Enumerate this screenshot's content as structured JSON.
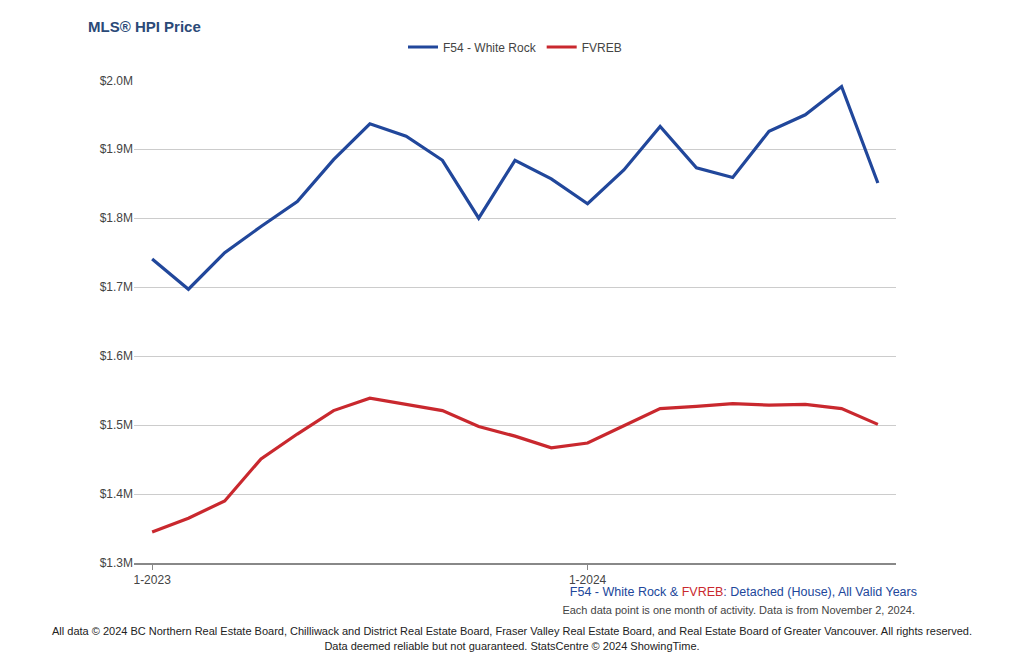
{
  "chart_data": {
    "type": "line",
    "title": "MLS® HPI Price",
    "categories": [
      "1-2023",
      null,
      null,
      null,
      null,
      null,
      null,
      null,
      null,
      null,
      null,
      null,
      "1-2024",
      null,
      null,
      null,
      null,
      null,
      null,
      null,
      null
    ],
    "series": [
      {
        "name": "F54 - White Rock",
        "color": "#21479b",
        "values": [
          1741000,
          1697000,
          1750000,
          1788000,
          1824000,
          1885000,
          1937000,
          1919000,
          1884000,
          1800000,
          1884000,
          1857000,
          1821000,
          1870000,
          1933000,
          1873000,
          1859000,
          1926000,
          1950000,
          1991000,
          1851000
        ]
      },
      {
        "name": "FVREB",
        "color": "#c9282e",
        "values": [
          1345000,
          1365000,
          1390000,
          1451000,
          1487000,
          1521000,
          1539000,
          1530000,
          1521000,
          1498000,
          1484000,
          1467000,
          1474000,
          1499000,
          1524000,
          1527000,
          1531000,
          1529000,
          1530000,
          1524000,
          1501000
        ]
      }
    ],
    "ylim": [
      1300000,
      2000000
    ],
    "yticks": [
      {
        "value": 1300000,
        "label": "$1.3M"
      },
      {
        "value": 1400000,
        "label": "$1.4M"
      },
      {
        "value": 1500000,
        "label": "$1.5M"
      },
      {
        "value": 1600000,
        "label": "$1.6M"
      },
      {
        "value": 1700000,
        "label": "$1.7M"
      },
      {
        "value": 1800000,
        "label": "$1.8M"
      },
      {
        "value": 1900000,
        "label": "$1.9M"
      },
      {
        "value": 2000000,
        "label": "$2.0M"
      }
    ],
    "grid": true,
    "legend": "top",
    "caption": "F54 - White Rock & FVREB: Detached (House), All Valid Years",
    "notes": [
      "Each data point is one month of activity. Data is from November 2, 2024."
    ],
    "footer": [
      "All data © 2024 BC Northern Real Estate Board, Chilliwack and District Real Estate Board, Fraser Valley Real Estate Board, and Real Estate Board of Greater Vancouver. All rights reserved.",
      "Data deemed reliable but not guaranteed. StatsCentre © 2024 ShowingTime."
    ]
  }
}
